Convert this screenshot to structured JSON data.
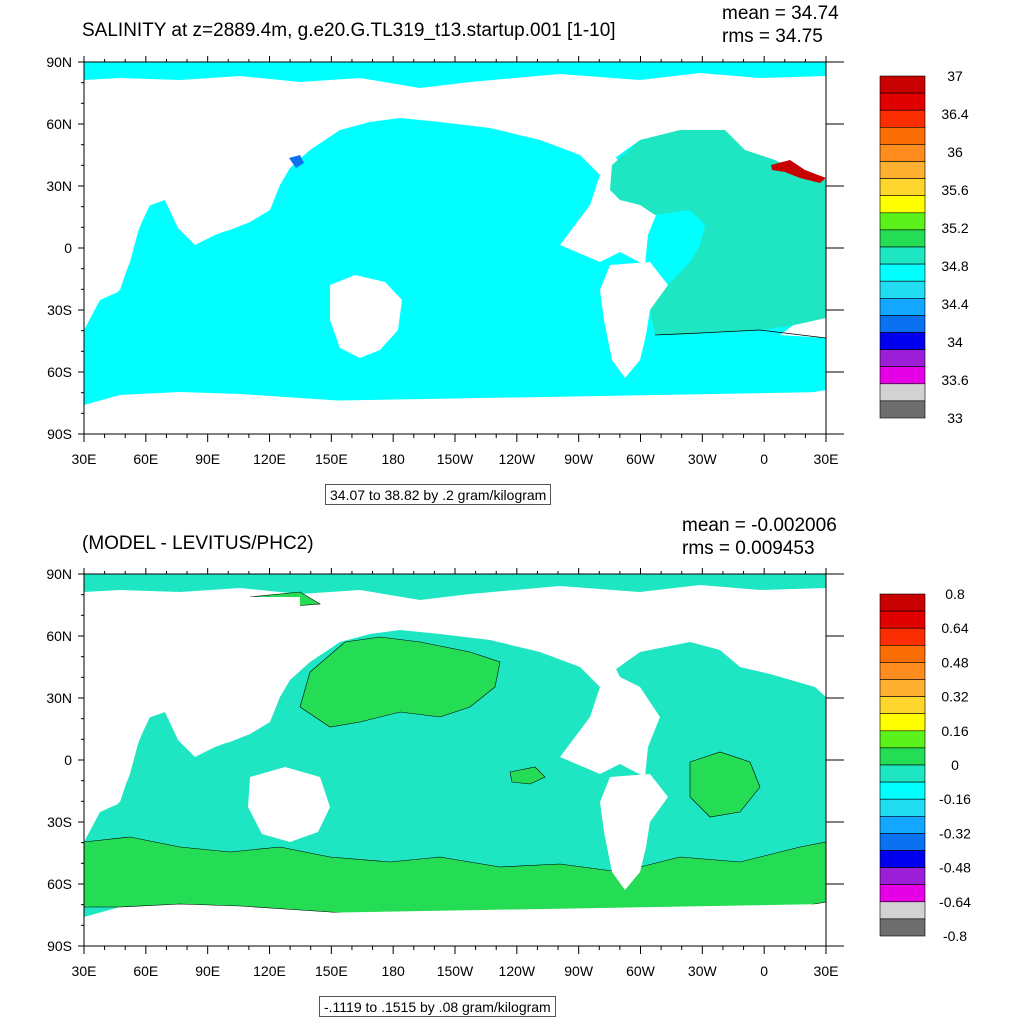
{
  "panels": [
    {
      "title": "SALINITY at z=2889.4m, g.e20.G.TL319_t13.startup.001 [1-10]",
      "mean_text": "mean = 34.74",
      "rms_text": "rms = 34.75",
      "contour_info": "34.07 to 38.82 by .2 gram/kilogram",
      "lat_labels": [
        "90N",
        "60N",
        "30N",
        "0",
        "30S",
        "60S",
        "90S"
      ],
      "lon_labels": [
        "30E",
        "60E",
        "90E",
        "120E",
        "150E",
        "180",
        "150W",
        "120W",
        "90W",
        "60W",
        "30W",
        "0",
        "30E"
      ],
      "colorbar": {
        "labels": [
          "37",
          "36.4",
          "36",
          "35.6",
          "35.2",
          "34.8",
          "34.4",
          "34",
          "33.6",
          "33"
        ]
      }
    },
    {
      "title": "(MODEL - LEVITUS/PHC2)",
      "mean_text": "mean = -0.002006",
      "rms_text": "rms = 0.009453",
      "contour_info": "-.1119 to .1515 by .08 gram/kilogram",
      "lat_labels": [
        "90N",
        "60N",
        "30N",
        "0",
        "30S",
        "60S",
        "90S"
      ],
      "lon_labels": [
        "30E",
        "60E",
        "90E",
        "120E",
        "150E",
        "180",
        "150W",
        "120W",
        "90W",
        "60W",
        "30W",
        "0",
        "30E"
      ],
      "colorbar": {
        "labels": [
          "0.8",
          "0.64",
          "0.48",
          "0.32",
          "0.16",
          "0",
          "-0.16",
          "-0.32",
          "-0.48",
          "-0.64",
          "-0.8"
        ]
      }
    }
  ],
  "palette": [
    "#6e6e6e",
    "#d2d2d2",
    "#e600e6",
    "#9a1fd6",
    "#0000ef",
    "#0a72f0",
    "#14a7ff",
    "#22dcf2",
    "#00ffff",
    "#1ee6c2",
    "#25dc55",
    "#5af21a",
    "#ffff00",
    "#ffd62e",
    "#ffb030",
    "#ff8c1e",
    "#fa6e05",
    "#fa2d00",
    "#e10000",
    "#c80000"
  ],
  "colors": {
    "ocean_top": "#00ffff",
    "atlantic_top": "#1ee6c2",
    "ocean_bottom": "#1ee6c2",
    "ocean_bottom_pos": "#25dc55",
    "arctic_blob": "#0a72f0",
    "med_blob": "#c80000"
  }
}
